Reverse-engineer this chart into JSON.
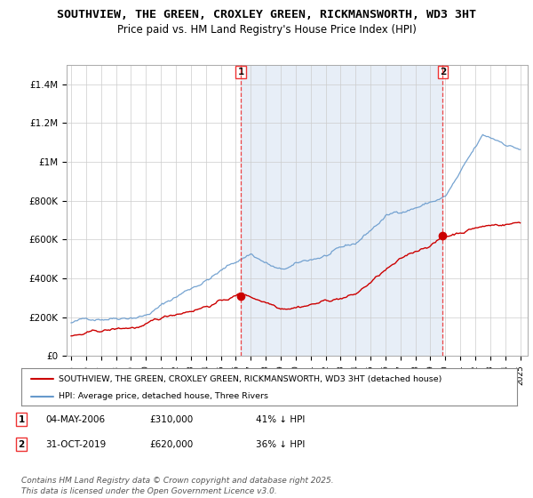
{
  "title_line1": "SOUTHVIEW, THE GREEN, CROXLEY GREEN, RICKMANSWORTH, WD3 3HT",
  "title_line2": "Price paid vs. HM Land Registry's House Price Index (HPI)",
  "title_fontsize": 9.5,
  "subtitle_fontsize": 8.5,
  "ylim": [
    0,
    1500000
  ],
  "yticks": [
    0,
    200000,
    400000,
    600000,
    800000,
    1000000,
    1200000,
    1400000
  ],
  "ytick_labels": [
    "£0",
    "£200K",
    "£400K",
    "£600K",
    "£800K",
    "£1M",
    "£1.2M",
    "£1.4M"
  ],
  "background_color": "#ffffff",
  "plot_bg_color": "#f0f4ff",
  "grid_color": "#cccccc",
  "red_line_color": "#cc0000",
  "blue_line_color": "#6699cc",
  "vline_color": "#ee3333",
  "shade_color": "#dde8f5",
  "marker1_year": 2006.34,
  "marker2_year": 2019.83,
  "legend_line1": "SOUTHVIEW, THE GREEN, CROXLEY GREEN, RICKMANSWORTH, WD3 3HT (detached house)",
  "legend_line2": "HPI: Average price, detached house, Three Rivers",
  "annotation1_date": "04-MAY-2006",
  "annotation1_price": "£310,000",
  "annotation1_hpi": "41% ↓ HPI",
  "annotation2_date": "31-OCT-2019",
  "annotation2_price": "£620,000",
  "annotation2_hpi": "36% ↓ HPI",
  "footnote": "Contains HM Land Registry data © Crown copyright and database right 2025.\nThis data is licensed under the Open Government Licence v3.0.",
  "footnote_fontsize": 6.5
}
